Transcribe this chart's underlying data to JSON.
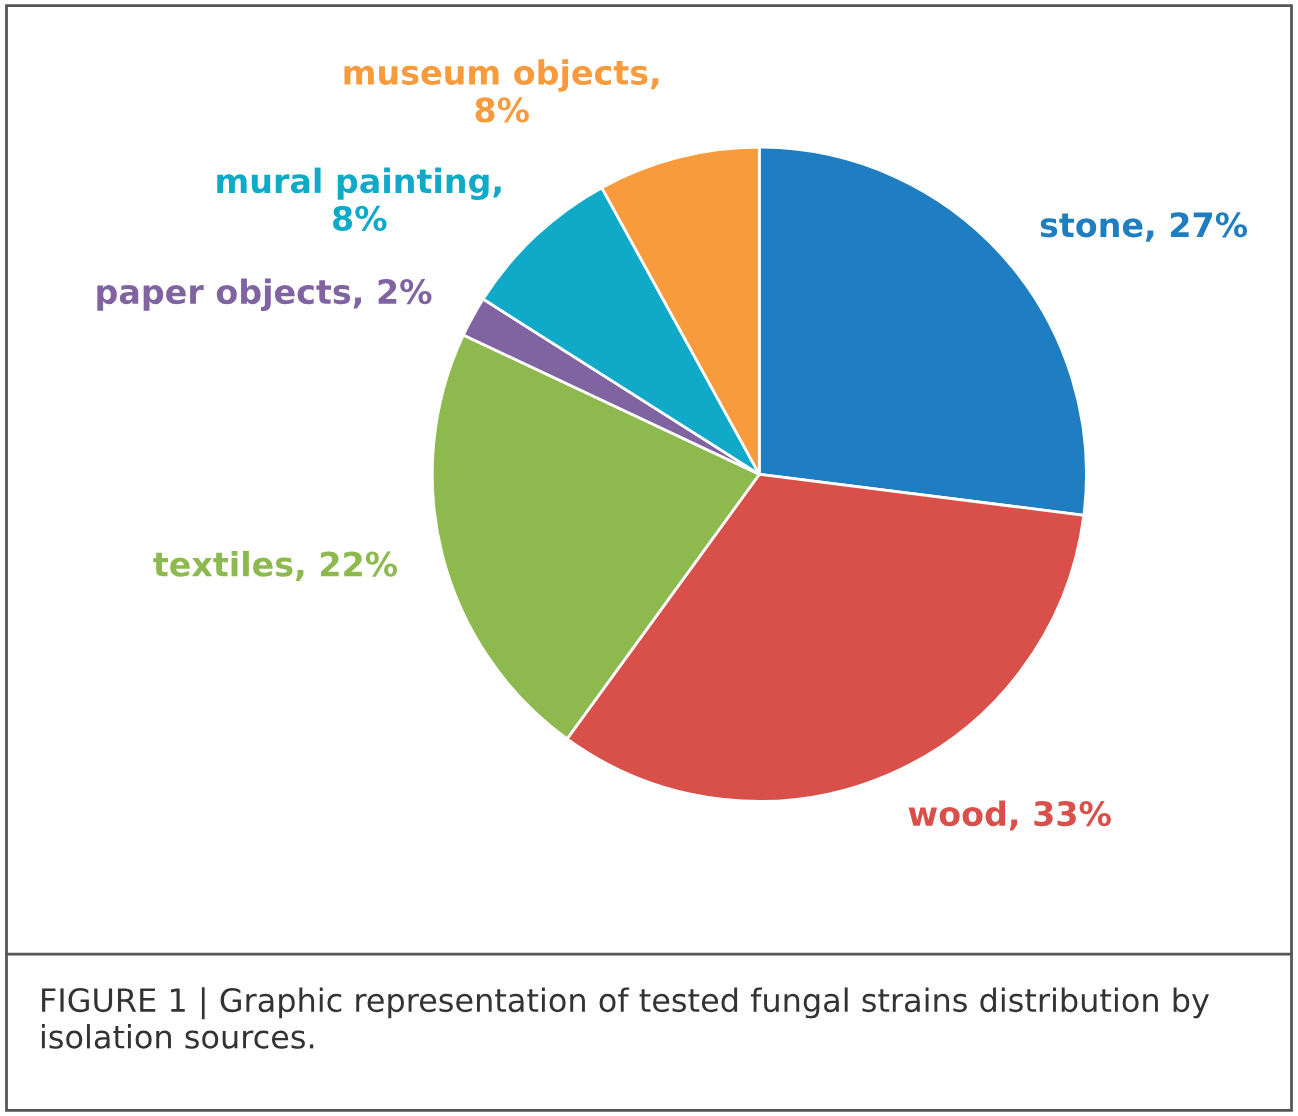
{
  "chart_data": {
    "type": "pie",
    "categories": [
      "stone, 27%",
      "wood, 33%",
      "textiles, 22%",
      "paper objects, 2%",
      "mural painting,\n8%",
      "museum objects,\n8%"
    ],
    "values": [
      27,
      33,
      22,
      2,
      8,
      8
    ],
    "colors": [
      "#1f7ec1",
      "#d94f4a",
      "#8db94e",
      "#8064a2",
      "#10aac8",
      "#f79b3c"
    ],
    "annotations": [
      "FIGURE 1 | Graphic representation of tested fungal strains distribution by isolation sources."
    ]
  }
}
